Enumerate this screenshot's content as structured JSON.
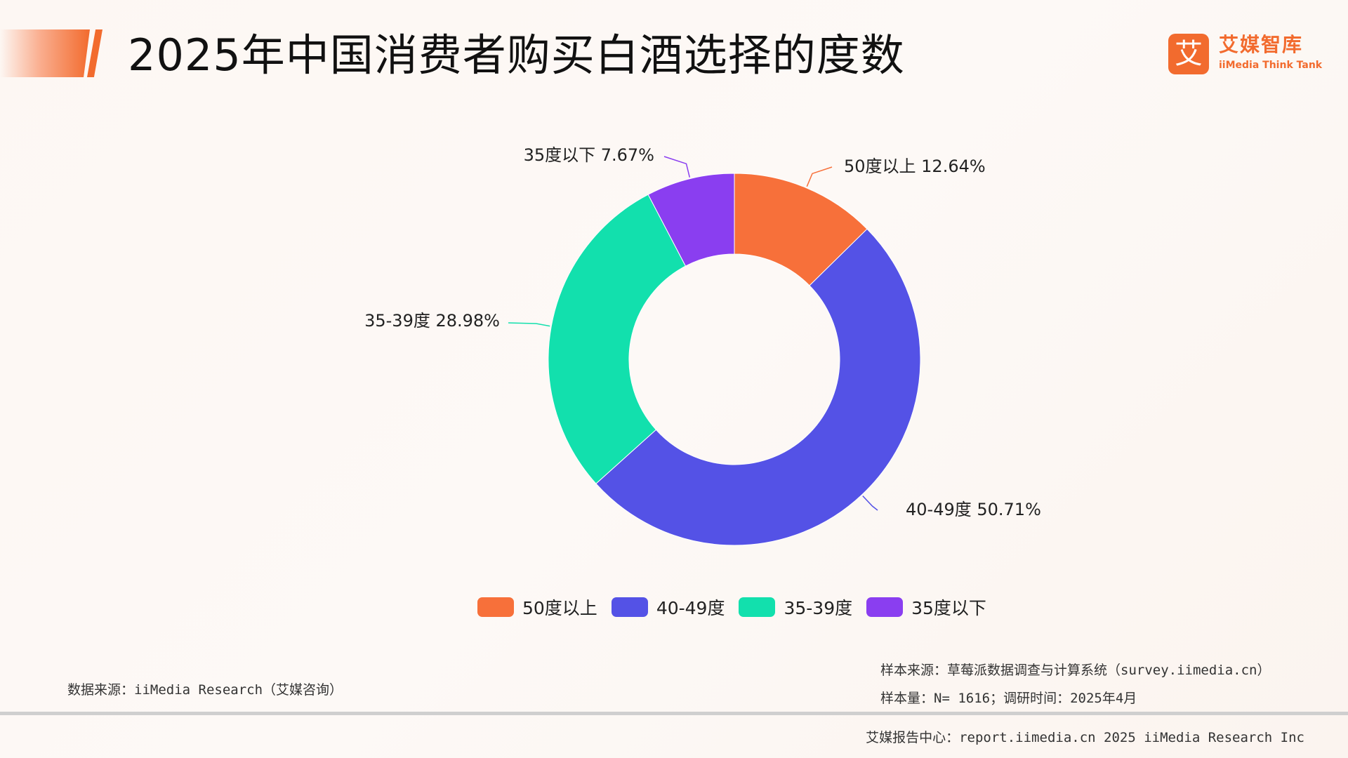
{
  "header": {
    "title": "2025年中国消费者购买白酒选择的度数"
  },
  "logo": {
    "mark": "艾",
    "name_cn": "艾媒智库",
    "name_en": "iiMedia Think Tank"
  },
  "colors": {
    "accent": "#f26b2e",
    "slice_50_plus": "#f7703a",
    "slice_40_49": "#5452e6",
    "slice_35_39": "#12e0ad",
    "slice_below_35": "#8a3ef0"
  },
  "chart_data": {
    "type": "pie",
    "donut": true,
    "title": "2025年中国消费者购买白酒选择的度数",
    "categories": [
      "50度以上",
      "40-49度",
      "35-39度",
      "35度以下"
    ],
    "values": [
      12.64,
      50.71,
      28.98,
      7.67
    ],
    "labels": [
      "50度以上 12.64%",
      "40-49度 50.71%",
      "35-39度 28.98%",
      "35度以下 7.67%"
    ],
    "unit": "%",
    "legend": "bottom"
  },
  "legend": {
    "items": [
      {
        "label": "50度以上",
        "color": "#f7703a"
      },
      {
        "label": "40-49度",
        "color": "#5452e6"
      },
      {
        "label": "35-39度",
        "color": "#12e0ad"
      },
      {
        "label": "35度以下",
        "color": "#8a3ef0"
      }
    ]
  },
  "footer": {
    "data_source": "数据来源：iiMedia Research（艾媒咨询）",
    "sample_source": "样本来源：草莓派数据调查与计算系统（survey.iimedia.cn）",
    "sample_size": "样本量：N= 1616；调研时间：2025年4月",
    "copyright": "艾媒报告中心：report.iimedia.cn   2025 iiMedia Research Inc"
  }
}
